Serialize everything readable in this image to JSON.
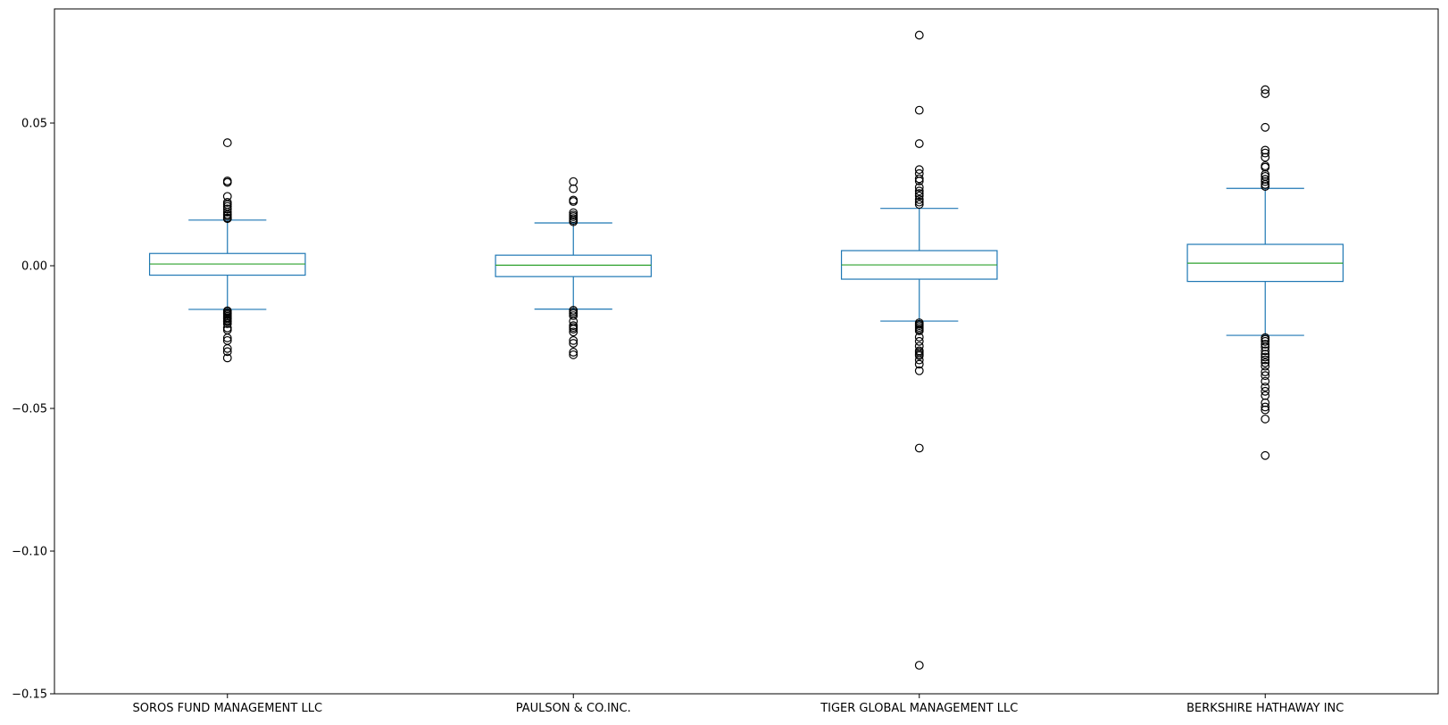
{
  "chart_data": {
    "type": "box",
    "categories": [
      "SOROS FUND MANAGEMENT LLC",
      "PAULSON & CO.INC.",
      "TIGER GLOBAL MANAGEMENT LLC",
      "BERKSHIRE HATHAWAY INC"
    ],
    "ylim": [
      -0.15,
      0.09
    ],
    "yticks": [
      -0.15,
      -0.1,
      -0.05,
      0.0,
      0.05
    ],
    "ytick_labels": [
      "−0.15",
      "−0.10",
      "−0.05",
      "0.00",
      "0.05"
    ],
    "grid": false,
    "legend": "none",
    "colors": {
      "box": "#1f77b4",
      "median": "#2ca02c",
      "flier": "#000000",
      "axes": "#000000"
    },
    "boxes": [
      {
        "name": "SOROS FUND MANAGEMENT LLC",
        "whisker_low": -0.0153,
        "q1": -0.0033,
        "median": 0.0006,
        "q3": 0.0043,
        "whisker_high": 0.016,
        "outliers": [
          0.0431,
          0.0297,
          0.0292,
          0.0243,
          0.0222,
          0.0215,
          0.0208,
          0.0199,
          0.0188,
          0.018,
          0.0175,
          0.0168,
          0.0165,
          -0.0158,
          -0.0163,
          -0.0168,
          -0.0172,
          -0.0177,
          -0.0182,
          -0.0186,
          -0.0191,
          -0.0196,
          -0.0203,
          -0.0218,
          -0.0225,
          -0.0253,
          -0.0262,
          -0.029,
          -0.0301,
          -0.0323
        ]
      },
      {
        "name": "PAULSON & CO.INC.",
        "whisker_low": -0.0152,
        "q1": -0.0038,
        "median": 0.0002,
        "q3": 0.0037,
        "whisker_high": 0.015,
        "outliers": [
          0.0295,
          0.027,
          0.023,
          0.0225,
          0.0186,
          0.0178,
          0.0172,
          0.0165,
          0.0159,
          0.0154,
          -0.0156,
          -0.0162,
          -0.0168,
          -0.0175,
          -0.0195,
          -0.021,
          -0.0216,
          -0.0222,
          -0.0232,
          -0.0262,
          -0.0272,
          -0.0303,
          -0.0312
        ]
      },
      {
        "name": "TIGER GLOBAL MANAGEMENT LLC",
        "whisker_low": -0.0194,
        "q1": -0.0047,
        "median": 0.0003,
        "q3": 0.0053,
        "whisker_high": 0.0201,
        "outliers": [
          0.0808,
          0.0545,
          0.0428,
          0.0337,
          0.0323,
          0.0305,
          0.0297,
          0.0275,
          0.0262,
          0.0253,
          0.0245,
          0.0232,
          0.0223,
          0.0215,
          -0.02,
          -0.0205,
          -0.021,
          -0.0216,
          -0.0222,
          -0.0228,
          -0.025,
          -0.0265,
          -0.0282,
          -0.0298,
          -0.0303,
          -0.031,
          -0.0315,
          -0.033,
          -0.0345,
          -0.0368,
          -0.0639,
          -0.14
        ]
      },
      {
        "name": "BERKSHIRE HATHAWAY INC",
        "whisker_low": -0.0244,
        "q1": -0.0055,
        "median": 0.0009,
        "q3": 0.0075,
        "whisker_high": 0.0271,
        "outliers": [
          0.0617,
          0.0603,
          0.0485,
          0.0405,
          0.0395,
          0.038,
          0.035,
          0.0345,
          0.032,
          0.0313,
          0.0303,
          0.0295,
          0.0285,
          0.0278,
          -0.0252,
          -0.0258,
          -0.0265,
          -0.0275,
          -0.0285,
          -0.0298,
          -0.031,
          -0.032,
          -0.033,
          -0.034,
          -0.0352,
          -0.0372,
          -0.0385,
          -0.0405,
          -0.0425,
          -0.044,
          -0.0455,
          -0.048,
          -0.0495,
          -0.0505,
          -0.0537,
          -0.0665
        ]
      }
    ]
  }
}
